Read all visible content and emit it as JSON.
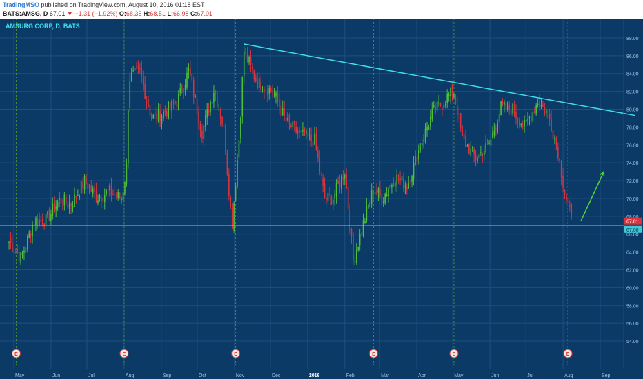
{
  "header": {
    "author": "TradingMSO",
    "published": "published on TradingView.com, August 10, 2016 01:18 EST",
    "symbol": "BATS:AMSG, D",
    "last": "67.01",
    "change": "▼ −1.31 (−1.92%)",
    "open_label": "O:",
    "open": "68.35",
    "high_label": "H:",
    "high": "68.51",
    "low_label": "L:",
    "low": "66.98",
    "close_label": "C:",
    "close": "67.01"
  },
  "colors": {
    "background": "#0b3a66",
    "grid": "#1d4f80",
    "up": "#4fbe3b",
    "down": "#d9333f",
    "trendline": "#3fe0e6",
    "arrow": "#4fd23b",
    "earnings_line": "#4a8a3a"
  },
  "chart_data": {
    "type": "candlestick",
    "title": "AMSURG CORP, D, BATS",
    "x_tick_labels": [
      "May",
      "Jun",
      "Jul",
      "Aug",
      "Sep",
      "Oct",
      "Nov",
      "Dec",
      "2016",
      "Feb",
      "Mar",
      "Apr",
      "May",
      "Jun",
      "Jul",
      "Aug",
      "Sep"
    ],
    "y_ticks": [
      54,
      56,
      58,
      60,
      62,
      64,
      66,
      68,
      70,
      72,
      74,
      76,
      78,
      80,
      82,
      84,
      86,
      88
    ],
    "y_tick_labels": [
      "54.00",
      "56.00",
      "58.00",
      "60.00",
      "62.00",
      "64.00",
      "66.00",
      "68.00",
      "70.00",
      "72.00",
      "74.00",
      "76.00",
      "78.00",
      "80.00",
      "82.00",
      "84.00",
      "86.00",
      "88.00"
    ],
    "ylim": [
      53,
      89
    ],
    "price_label_last": "67.01",
    "price_label_support": "67.00",
    "support_level": 67.0,
    "trendline": {
      "start": [
        "2015-11-09",
        87.3
      ],
      "end": [
        "2016-09-30",
        79.3
      ]
    },
    "earnings_markers": [
      "2015-05-03",
      "2015-08-01",
      "2015-11-02",
      "2016-02-25",
      "2016-05-02",
      "2016-08-05"
    ],
    "earnings_label": "E",
    "price_path": [
      [
        "2015-04-27",
        65.2
      ],
      [
        "2015-05-07",
        63.3
      ],
      [
        "2015-05-18",
        67.5
      ],
      [
        "2015-05-28",
        67.6
      ],
      [
        "2015-06-08",
        69.8
      ],
      [
        "2015-06-18",
        69.4
      ],
      [
        "2015-06-29",
        71.9
      ],
      [
        "2015-07-09",
        70.2
      ],
      [
        "2015-07-20",
        70.7
      ],
      [
        "2015-07-30",
        70.0
      ],
      [
        "2015-08-03",
        73.5
      ],
      [
        "2015-08-05",
        83.5
      ],
      [
        "2015-08-14",
        84.2
      ],
      [
        "2015-08-24",
        79.0
      ],
      [
        "2015-09-03",
        79.6
      ],
      [
        "2015-09-14",
        80.8
      ],
      [
        "2015-09-24",
        84.3
      ],
      [
        "2015-10-05",
        77.4
      ],
      [
        "2015-10-15",
        82.3
      ],
      [
        "2015-10-23",
        78.0
      ],
      [
        "2015-10-30",
        67.0
      ],
      [
        "2015-11-05",
        77.0
      ],
      [
        "2015-11-09",
        86.5
      ],
      [
        "2015-11-20",
        83.0
      ],
      [
        "2015-12-03",
        82.0
      ],
      [
        "2015-12-14",
        78.6
      ],
      [
        "2015-12-24",
        77.3
      ],
      [
        "2016-01-07",
        76.4
      ],
      [
        "2016-01-15",
        70.0
      ],
      [
        "2016-01-22",
        70.0
      ],
      [
        "2016-02-01",
        73.1
      ],
      [
        "2016-02-08",
        63.0
      ],
      [
        "2016-02-16",
        67.0
      ],
      [
        "2016-02-25",
        71.1
      ],
      [
        "2016-03-03",
        70.0
      ],
      [
        "2016-03-14",
        72.4
      ],
      [
        "2016-03-24",
        71.4
      ],
      [
        "2016-04-04",
        76.0
      ],
      [
        "2016-04-14",
        79.5
      ],
      [
        "2016-04-25",
        81.2
      ],
      [
        "2016-05-02",
        82.0
      ],
      [
        "2016-05-09",
        76.6
      ],
      [
        "2016-05-20",
        74.5
      ],
      [
        "2016-06-01",
        76.2
      ],
      [
        "2016-06-10",
        80.2
      ],
      [
        "2016-06-20",
        80.0
      ],
      [
        "2016-06-30",
        78.0
      ],
      [
        "2016-07-11",
        80.9
      ],
      [
        "2016-07-20",
        79.4
      ],
      [
        "2016-07-28",
        75.2
      ],
      [
        "2016-08-02",
        71.0
      ],
      [
        "2016-08-09",
        67.0
      ]
    ]
  }
}
